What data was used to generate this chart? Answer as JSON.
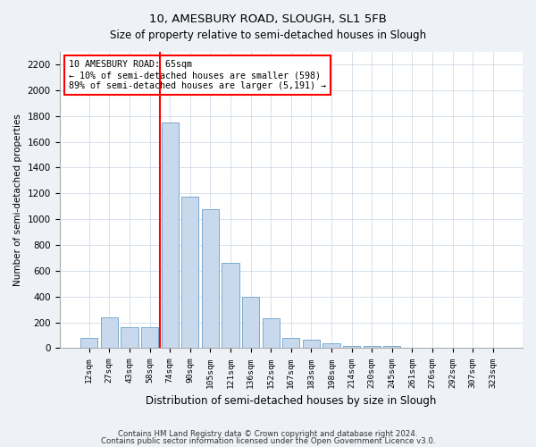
{
  "title": "10, AMESBURY ROAD, SLOUGH, SL1 5FB",
  "subtitle": "Size of property relative to semi-detached houses in Slough",
  "xlabel": "Distribution of semi-detached houses by size in Slough",
  "ylabel": "Number of semi-detached properties",
  "categories": [
    "12sqm",
    "27sqm",
    "43sqm",
    "58sqm",
    "74sqm",
    "90sqm",
    "105sqm",
    "121sqm",
    "136sqm",
    "152sqm",
    "167sqm",
    "183sqm",
    "198sqm",
    "214sqm",
    "230sqm",
    "245sqm",
    "261sqm",
    "276sqm",
    "292sqm",
    "307sqm",
    "323sqm"
  ],
  "values": [
    80,
    240,
    160,
    160,
    1750,
    1175,
    1075,
    660,
    400,
    230,
    80,
    65,
    35,
    20,
    20,
    15,
    0,
    0,
    0,
    0,
    0
  ],
  "bar_color": "#c9d9ed",
  "bar_edge_color": "#7aaace",
  "red_line_x": 3.5,
  "annotation_title": "10 AMESBURY ROAD: 65sqm",
  "annotation_line2": "← 10% of semi-detached houses are smaller (598)",
  "annotation_line3": "89% of semi-detached houses are larger (5,191) →",
  "ylim": [
    0,
    2300
  ],
  "yticks": [
    0,
    200,
    400,
    600,
    800,
    1000,
    1200,
    1400,
    1600,
    1800,
    2000,
    2200
  ],
  "footnote1": "Contains HM Land Registry data © Crown copyright and database right 2024.",
  "footnote2": "Contains public sector information licensed under the Open Government Licence v3.0.",
  "background_color": "#eef2f7",
  "plot_bg_color": "#ffffff",
  "title_fontsize": 9.5,
  "subtitle_fontsize": 8.5
}
